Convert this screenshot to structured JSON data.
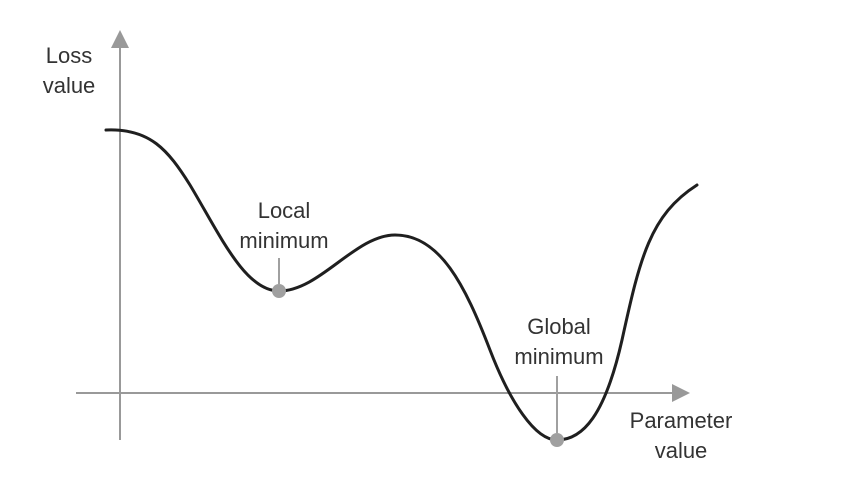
{
  "labels": {
    "y_axis_line1": "Loss",
    "y_axis_line2": "value",
    "x_axis_line1": "Parameter",
    "x_axis_line2": "value",
    "local_line1": "Local",
    "local_line2": "minimum",
    "global_line1": "Global",
    "global_line2": "minimum"
  },
  "colors": {
    "curve": "#1f1f1f",
    "axis": "#999999",
    "marker": "#a0a0a0",
    "text": "#333333"
  }
}
